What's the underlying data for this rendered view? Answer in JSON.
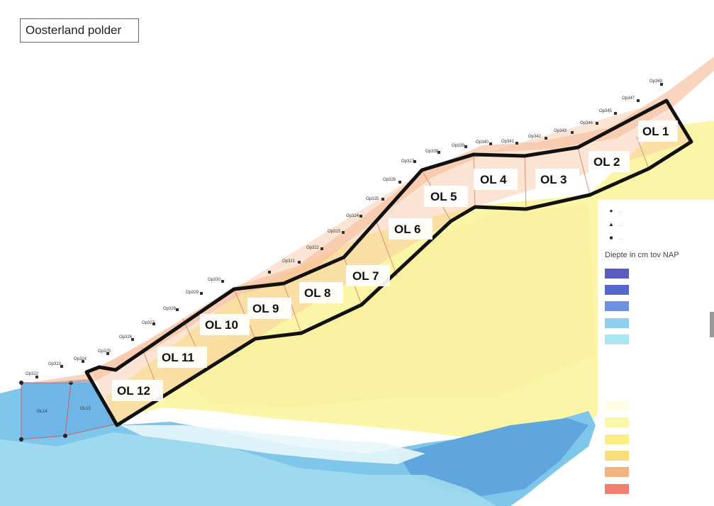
{
  "map": {
    "title": "Oosterland polder",
    "segments": [
      "OL 1",
      "OL 2",
      "OL 3",
      "OL 4",
      "OL 5",
      "OL 6",
      "OL 7",
      "OL 8",
      "OL 9",
      "OL 10",
      "OL 11",
      "OL 12"
    ],
    "point_labels": [
      "Op349",
      "Op347",
      "Op345",
      "Op344",
      "Op343",
      "Op342",
      "Op341",
      "Op340",
      "Op339",
      "Op338",
      "Op327",
      "Op326",
      "Op325",
      "Op324",
      "Op323",
      "Op322",
      "Op321",
      "Op330",
      "Op329",
      "Op328",
      "Op327",
      "Op326",
      "Op325",
      "Op324",
      "Op323",
      "Op322",
      "Op321"
    ],
    "sub_areas": [
      "OL14",
      "OL13"
    ]
  },
  "legend": {
    "symbols": [
      {
        "icon": "circle-icon",
        "label": "..."
      },
      {
        "icon": "triangle-icon",
        "label": "..."
      },
      {
        "icon": "square-icon",
        "label": "..."
      }
    ],
    "title": "Diepte in cm tov NAP",
    "classes": [
      {
        "color": "#5b5cc0"
      },
      {
        "color": "#5566cc"
      },
      {
        "color": "#6f8fe0"
      },
      {
        "color": "#8fd0ee"
      },
      {
        "color": "#a9e6f2"
      },
      {
        "color": "#ffffff"
      },
      {
        "color": "#ffffff"
      },
      {
        "color": "#ffffff"
      },
      {
        "color": "#fffde6"
      },
      {
        "color": "#fbf7a8"
      },
      {
        "color": "#f9ee84"
      },
      {
        "color": "#f7de7a"
      },
      {
        "color": "#f4b37e"
      },
      {
        "color": "#f07f72"
      }
    ]
  }
}
